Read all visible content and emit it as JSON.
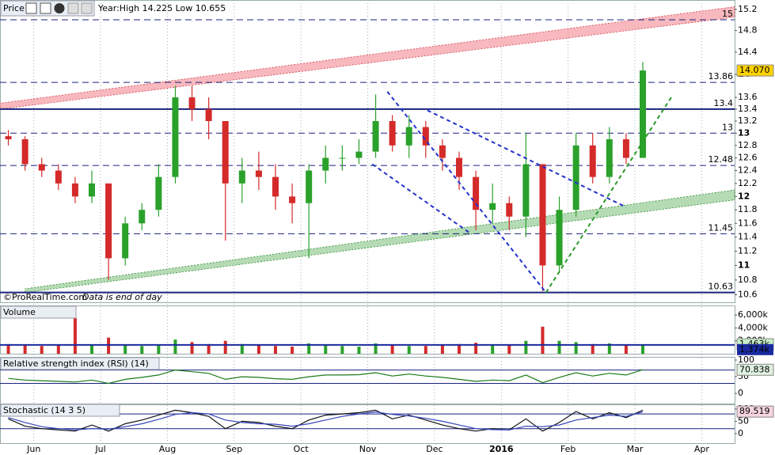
{
  "chart_data": [
    {
      "type": "candlestick",
      "title": "Price",
      "subtitle": "Year:High 14.225 Low 10.655",
      "source": "©ProRealTime.com",
      "note": "Data is end of day",
      "log": true,
      "ylim": [
        10.5,
        15.38
      ],
      "yticks": [
        15.2,
        14.8,
        14.4,
        14,
        13.6,
        13.4,
        13.2,
        13,
        12.8,
        12.6,
        12.4,
        12.2,
        12,
        11.8,
        11.6,
        11.4,
        11.2,
        11,
        10.8,
        10.6
      ],
      "categories": [
        null,
        null,
        "Jun",
        null,
        null,
        null,
        "Jul",
        null,
        null,
        null,
        "Aug",
        null,
        null,
        null,
        "Sep",
        null,
        null,
        null,
        "Oct",
        null,
        null,
        null,
        "Nov",
        null,
        null,
        null,
        "Dec",
        null,
        null,
        null,
        "2016",
        null,
        null,
        null,
        "Feb",
        null,
        null,
        null,
        "Mar",
        null,
        null,
        null,
        "Apr",
        null
      ],
      "open": [
        12.95,
        12.9,
        12.5,
        12.4,
        12.2,
        12.0,
        12.2,
        11.1,
        11.6,
        11.8,
        12.3,
        13.6,
        13.4,
        13.2,
        12.2,
        12.4,
        12.3,
        12.0,
        11.9,
        12.4,
        12.6,
        12.6,
        12.7,
        13.2,
        12.8,
        13.1,
        12.8,
        12.6,
        12.3,
        11.8,
        11.9,
        11.7,
        12.5,
        11.0,
        11.8,
        12.8,
        12.3,
        12.9,
        12.6,
        null,
        null,
        null,
        null,
        null
      ],
      "high": [
        13.05,
        12.95,
        12.6,
        12.5,
        12.3,
        12.4,
        12.2,
        11.7,
        11.9,
        12.5,
        13.8,
        13.8,
        13.6,
        13.2,
        12.6,
        12.7,
        12.5,
        12.2,
        12.5,
        12.8,
        12.8,
        12.9,
        13.65,
        13.3,
        13.3,
        13.2,
        12.9,
        12.7,
        12.4,
        12.2,
        12.0,
        13.0,
        12.5,
        12.0,
        13.0,
        13.0,
        13.1,
        13.0,
        14.22,
        null,
        null,
        null,
        null,
        null
      ],
      "low": [
        12.8,
        12.4,
        12.3,
        12.1,
        11.9,
        11.9,
        10.8,
        11.0,
        11.5,
        11.7,
        12.2,
        13.2,
        12.9,
        11.35,
        11.9,
        12.1,
        11.8,
        11.6,
        11.1,
        12.2,
        12.4,
        12.5,
        12.6,
        12.7,
        12.6,
        12.6,
        12.4,
        12.1,
        11.5,
        11.6,
        11.5,
        11.4,
        10.65,
        10.9,
        11.7,
        12.2,
        12.2,
        12.5,
        12.6,
        null,
        null,
        null,
        null,
        null
      ],
      "close": [
        12.9,
        12.5,
        12.4,
        12.2,
        12.0,
        12.2,
        11.1,
        11.6,
        11.8,
        12.3,
        13.6,
        13.4,
        13.2,
        12.2,
        12.4,
        12.3,
        12.0,
        11.9,
        12.4,
        12.6,
        12.6,
        12.7,
        13.2,
        12.8,
        13.1,
        12.8,
        12.6,
        12.3,
        11.8,
        11.9,
        11.7,
        12.5,
        11.0,
        11.8,
        12.8,
        12.3,
        12.9,
        12.6,
        14.07,
        null,
        null,
        null,
        null,
        null
      ],
      "up_color": "#2aa12a",
      "down_color": "#d42a2a",
      "last": {
        "value": 14.07,
        "label": "14.070",
        "color": "#ffd200"
      },
      "levels": [
        {
          "value": 15,
          "style": "dashed"
        },
        {
          "value": 13.86,
          "style": "dashed"
        },
        {
          "value": 13.4,
          "style": "solid"
        },
        {
          "value": 13,
          "style": "dashed"
        },
        {
          "value": 12.48,
          "style": "dashed"
        },
        {
          "value": 11.45,
          "style": "dashed"
        },
        {
          "value": 10.63,
          "style": "solid"
        }
      ],
      "bands": [
        {
          "color": "#f4a0a8",
          "edge": "#d4404e",
          "lower": [
            [
              -0.5,
              13.4
            ],
            [
              43.5,
              15.05
            ]
          ],
          "upper": [
            [
              -0.5,
              13.5
            ],
            [
              43.5,
              15.25
            ]
          ]
        },
        {
          "color": "#9ccf9c",
          "edge": "#2e8a2e",
          "lower": [
            [
              1,
              10.63
            ],
            [
              43.5,
              11.95
            ]
          ],
          "upper": [
            [
              1,
              10.68
            ],
            [
              43.5,
              12.1
            ]
          ]
        }
      ],
      "trendlines": [
        {
          "color": "#2233cc",
          "points": [
            [
              22.7,
              13.7
            ],
            [
              32.2,
              10.63
            ]
          ]
        },
        {
          "color": "#2233cc",
          "points": [
            [
              21.8,
              12.5
            ],
            [
              27.7,
              11.45
            ]
          ]
        },
        {
          "color": "#2233cc",
          "points": [
            [
              25.1,
              13.38
            ],
            [
              37,
              11.84
            ]
          ]
        },
        {
          "color": "#2a9a2a",
          "points": [
            [
              32.2,
              10.63
            ],
            [
              39.7,
              13.6
            ]
          ]
        }
      ]
    },
    {
      "type": "bar",
      "title": "Volume",
      "ylim": [
        0,
        7500
      ],
      "yticks": [
        {
          "value": 6000,
          "label": "6,000k"
        },
        {
          "value": 4000,
          "label": "4,000k"
        },
        {
          "value": 2000,
          "label": "2,000k"
        }
      ],
      "values": [
        1500,
        1300,
        1200,
        1400,
        5500,
        1300,
        2500,
        1400,
        1200,
        1300,
        2200,
        1800,
        1500,
        2000,
        1500,
        1300,
        1200,
        1100,
        1600,
        1300,
        1200,
        1100,
        1600,
        1300,
        1200,
        1200,
        1300,
        1500,
        1700,
        1300,
        1400,
        2000,
        4200,
        2000,
        1800,
        1500,
        1600,
        1400,
        1463
      ],
      "last": {
        "value": 1463,
        "label": "1,463k",
        "color": "#c8f0c8"
      },
      "average": {
        "value": 1374,
        "label": "1,374k",
        "color": "#1a2aa0"
      }
    },
    {
      "type": "line",
      "title": "Relative strength index (RSI) (14)",
      "ylim": [
        -33,
        109.5
      ],
      "yticks": [
        100,
        50,
        0
      ],
      "levels": [
        70,
        30
      ],
      "series": [
        {
          "color": "#1a7a1a",
          "values": [
            45,
            40,
            38,
            36,
            34,
            40,
            30,
            42,
            48,
            55,
            70,
            65,
            60,
            42,
            50,
            48,
            44,
            42,
            50,
            55,
            55,
            56,
            62,
            52,
            58,
            52,
            48,
            42,
            36,
            40,
            38,
            55,
            32,
            48,
            62,
            52,
            60,
            55,
            71
          ]
        }
      ],
      "last": {
        "value": 70.838,
        "label": "70.838",
        "color": "#e0f2e0"
      }
    },
    {
      "type": "line",
      "title": "Stochastic (14 3 5)",
      "ylim": [
        -39,
        119
      ],
      "yticks": [
        100,
        50,
        0
      ],
      "levels": [
        80,
        20
      ],
      "series": [
        {
          "color": "#111111",
          "values": [
            60,
            30,
            20,
            15,
            10,
            35,
            10,
            40,
            55,
            75,
            95,
            85,
            70,
            20,
            50,
            45,
            30,
            20,
            55,
            75,
            80,
            85,
            95,
            60,
            75,
            55,
            35,
            20,
            10,
            20,
            15,
            60,
            10,
            45,
            90,
            60,
            85,
            65,
            95
          ]
        },
        {
          "color": "#3344bb",
          "values": [
            65,
            45,
            28,
            20,
            15,
            20,
            18,
            28,
            40,
            58,
            78,
            85,
            80,
            55,
            45,
            40,
            38,
            30,
            40,
            55,
            70,
            80,
            88,
            78,
            72,
            62,
            50,
            35,
            20,
            16,
            15,
            30,
            28,
            35,
            55,
            65,
            75,
            70,
            88
          ]
        }
      ],
      "last": {
        "value": 89.519,
        "label": "89.519",
        "color": "#f6d4e0"
      }
    }
  ]
}
